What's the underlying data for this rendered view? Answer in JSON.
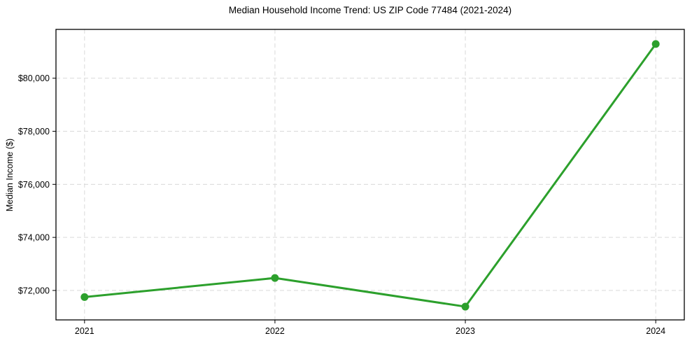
{
  "figure": {
    "background": "#ffffff"
  },
  "chart_data": {
    "type": "line",
    "title": "Median Household Income Trend: US ZIP Code 77484 (2021-2024)",
    "xlabel": "",
    "ylabel": "Median Income ($)",
    "x": [
      2021,
      2022,
      2023,
      2024
    ],
    "x_tick_labels": [
      "2021",
      "2022",
      "2023",
      "2024"
    ],
    "series": [
      {
        "name": "Median household income",
        "values": [
          71750,
          72470,
          71390,
          81290
        ],
        "color": "#2ca02c",
        "marker": "circle",
        "line_width": 3
      }
    ],
    "y_ticks": [
      {
        "value": 72000,
        "label": "$72,000"
      },
      {
        "value": 74000,
        "label": "$74,000"
      },
      {
        "value": 76000,
        "label": "$76,000"
      },
      {
        "value": 78000,
        "label": "$78,000"
      },
      {
        "value": 80000,
        "label": "$80,000"
      }
    ],
    "xlim": [
      2020.85,
      2024.15
    ],
    "ylim": [
      70890,
      81840
    ],
    "grid": true,
    "grid_style": "dashed",
    "legend": "none",
    "colors": {
      "line": "#2ca02c",
      "grid": "#d9d9d9",
      "spine": "#000000",
      "text": "#000000",
      "background": "#ffffff"
    }
  }
}
